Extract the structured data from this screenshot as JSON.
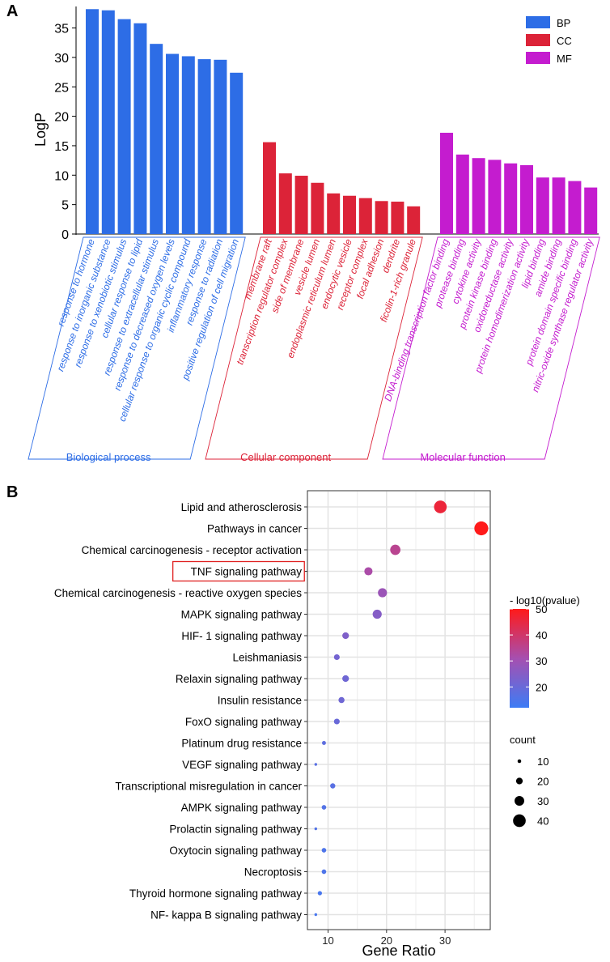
{
  "panelA": {
    "letter": "A",
    "ylabel": "LogP",
    "yticks": [
      0,
      5,
      10,
      15,
      20,
      25,
      30,
      35
    ],
    "legend": [
      {
        "key": "BP",
        "label": "BP",
        "color": "#2d6de6"
      },
      {
        "key": "CC",
        "label": "CC",
        "color": "#dc2338"
      },
      {
        "key": "MF",
        "label": "MF",
        "color": "#c41ccf"
      }
    ],
    "groups": [
      {
        "key": "BP",
        "name": "Biological process",
        "color": "#2d6de6"
      },
      {
        "key": "CC",
        "name": "Cellular component",
        "color": "#dc2338"
      },
      {
        "key": "MF",
        "name": "Molecular function",
        "color": "#c41ccf"
      }
    ]
  },
  "panelB": {
    "letter": "B",
    "xlabel": "Gene Ratio",
    "xticks": [
      10,
      20,
      30
    ],
    "color_legend": {
      "title": "- log10(pvalue)",
      "ticks": [
        20,
        30,
        40,
        50
      ],
      "low_color": "#3d7cf5",
      "high_color": "#ff1a1a"
    },
    "size_legend": {
      "title": "count",
      "values": [
        10,
        20,
        30,
        40
      ]
    },
    "highlight": "TNF signaling pathway"
  },
  "chart_data": [
    {
      "type": "bar",
      "title": "",
      "xlabel": "",
      "ylabel": "LogP",
      "ylim": [
        0,
        38.3
      ],
      "grid": false,
      "legend_position": "top-right",
      "series": [
        {
          "name": "BP",
          "categories": [
            "response to hormone",
            "response to inorganic substance",
            "response to xenobiotic stimulus",
            "cellular response to lipid",
            "response to extracellular stimulus",
            "response to decreased oxygen levels",
            "cellular response to organic cyclic compound",
            "inflammatory response",
            "response to radiation",
            "positive regulation of cell migration"
          ],
          "values": [
            38.2,
            38.0,
            36.5,
            35.8,
            32.3,
            30.6,
            30.2,
            29.7,
            29.6,
            27.4
          ]
        },
        {
          "name": "CC",
          "categories": [
            "membrane raft",
            "transcription regulator complex",
            "side of membrane",
            "vesicle lumen",
            "endoplasmic reticulum lumen",
            "endocytic vesicle",
            "receptor complex",
            "focal adhesion",
            "dendrite",
            "ficolin-1-rich granule"
          ],
          "values": [
            15.6,
            10.3,
            9.9,
            8.7,
            6.9,
            6.5,
            6.1,
            5.6,
            5.5,
            4.7
          ]
        },
        {
          "name": "MF",
          "categories": [
            "DNA-binding transcription factor binding",
            "protease binding",
            "cytokine activity",
            "protein kinase binding",
            "oxidoreductase activity",
            "protein homodimerization activity",
            "lipid binding",
            "amide binding",
            "protein domain specific binding",
            "nitric-oxide synthase regulator activity"
          ],
          "values": [
            17.2,
            13.5,
            12.9,
            12.6,
            12.0,
            11.7,
            9.6,
            9.6,
            9.0,
            7.9
          ]
        }
      ]
    },
    {
      "type": "scatter",
      "title": "",
      "xlabel": "Gene Ratio",
      "ylabel": "",
      "xlim": [
        7.5,
        37
      ],
      "grid": true,
      "legend_position": "right",
      "points": [
        {
          "pathway": "Lipid and atherosclerosis",
          "gene_ratio": 29.2,
          "pvalue_log10": 46,
          "count": 40
        },
        {
          "pathway": "Pathways in cancer",
          "gene_ratio": 36.2,
          "pvalue_log10": 50,
          "count": 44
        },
        {
          "pathway": "Chemical carcinogenesis -  receptor activation",
          "gene_ratio": 21.5,
          "pvalue_log10": 35,
          "count": 32
        },
        {
          "pathway": "TNF signaling pathway",
          "gene_ratio": 16.9,
          "pvalue_log10": 32,
          "count": 25
        },
        {
          "pathway": "Chemical carcinogenesis -  reactive oxygen species",
          "gene_ratio": 19.3,
          "pvalue_log10": 29,
          "count": 28
        },
        {
          "pathway": "MAPK signaling pathway",
          "gene_ratio": 18.4,
          "pvalue_log10": 25,
          "count": 28
        },
        {
          "pathway": "HIF- 1 signaling pathway",
          "gene_ratio": 13.0,
          "pvalue_log10": 24,
          "count": 20
        },
        {
          "pathway": "Leishmaniasis",
          "gene_ratio": 11.5,
          "pvalue_log10": 22,
          "count": 17
        },
        {
          "pathway": "Relaxin signaling pathway",
          "gene_ratio": 13.0,
          "pvalue_log10": 21,
          "count": 20
        },
        {
          "pathway": "Insulin resistance",
          "gene_ratio": 12.3,
          "pvalue_log10": 21,
          "count": 18
        },
        {
          "pathway": "FoxO signaling pathway",
          "gene_ratio": 11.5,
          "pvalue_log10": 20,
          "count": 17
        },
        {
          "pathway": "Platinum drug resistance",
          "gene_ratio": 9.3,
          "pvalue_log10": 18,
          "count": 11
        },
        {
          "pathway": "VEGF signaling pathway",
          "gene_ratio": 7.9,
          "pvalue_log10": 17,
          "count": 7
        },
        {
          "pathway": "Transcriptional misregulation in cancer",
          "gene_ratio": 10.8,
          "pvalue_log10": 17,
          "count": 15
        },
        {
          "pathway": "AMPK signaling pathway",
          "gene_ratio": 9.3,
          "pvalue_log10": 16,
          "count": 13
        },
        {
          "pathway": "Prolactin signaling pathway",
          "gene_ratio": 7.9,
          "pvalue_log10": 16,
          "count": 7
        },
        {
          "pathway": "Oxytocin signaling pathway",
          "gene_ratio": 9.3,
          "pvalue_log10": 15,
          "count": 13
        },
        {
          "pathway": "Necroptosis",
          "gene_ratio": 9.3,
          "pvalue_log10": 15,
          "count": 13
        },
        {
          "pathway": "Thyroid hormone signaling pathway",
          "gene_ratio": 8.6,
          "pvalue_log10": 14,
          "count": 12
        },
        {
          "pathway": "NF- kappa B signaling pathway",
          "gene_ratio": 7.9,
          "pvalue_log10": 14,
          "count": 7
        }
      ]
    }
  ]
}
